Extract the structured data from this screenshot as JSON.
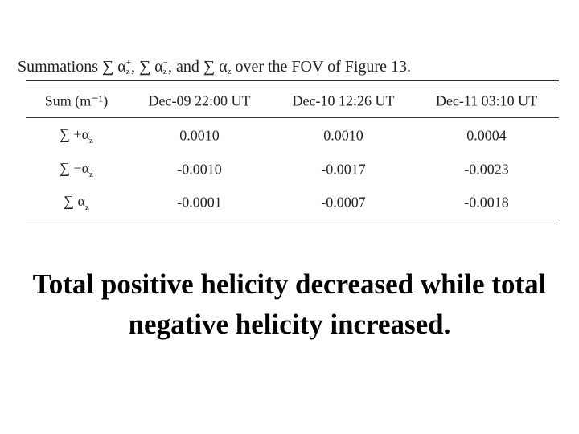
{
  "caption": [
    {
      "text": "Summations ∑ α"
    },
    {
      "sub": "z",
      "sup": "+"
    },
    {
      "text": ", ∑ α"
    },
    {
      "sub": "z",
      "sup": "−"
    },
    {
      "text": ", and ∑ α"
    },
    {
      "sub": "z"
    },
    {
      "text": " over the FOV of Figure 13."
    }
  ],
  "table": {
    "header": [
      "Sum (m⁻¹)",
      "Dec-09 22:00 UT",
      "Dec-10 12:26 UT",
      "Dec-11 03:10 UT"
    ],
    "rows": [
      {
        "label": {
          "text": "∑ +α",
          "sub": "z"
        },
        "cells": [
          "0.0010",
          "0.0010",
          "0.0004"
        ]
      },
      {
        "label": {
          "text": "∑ −α",
          "sub": "z"
        },
        "cells": [
          "-0.0010",
          "-0.0017",
          "-0.0023"
        ]
      },
      {
        "label": {
          "text": "∑ α",
          "sub": "z"
        },
        "cells": [
          "-0.0001",
          "-0.0007",
          "-0.0018"
        ]
      }
    ]
  },
  "statement": [
    "Total positive helicity decreased while total",
    "negative helicity increased."
  ]
}
